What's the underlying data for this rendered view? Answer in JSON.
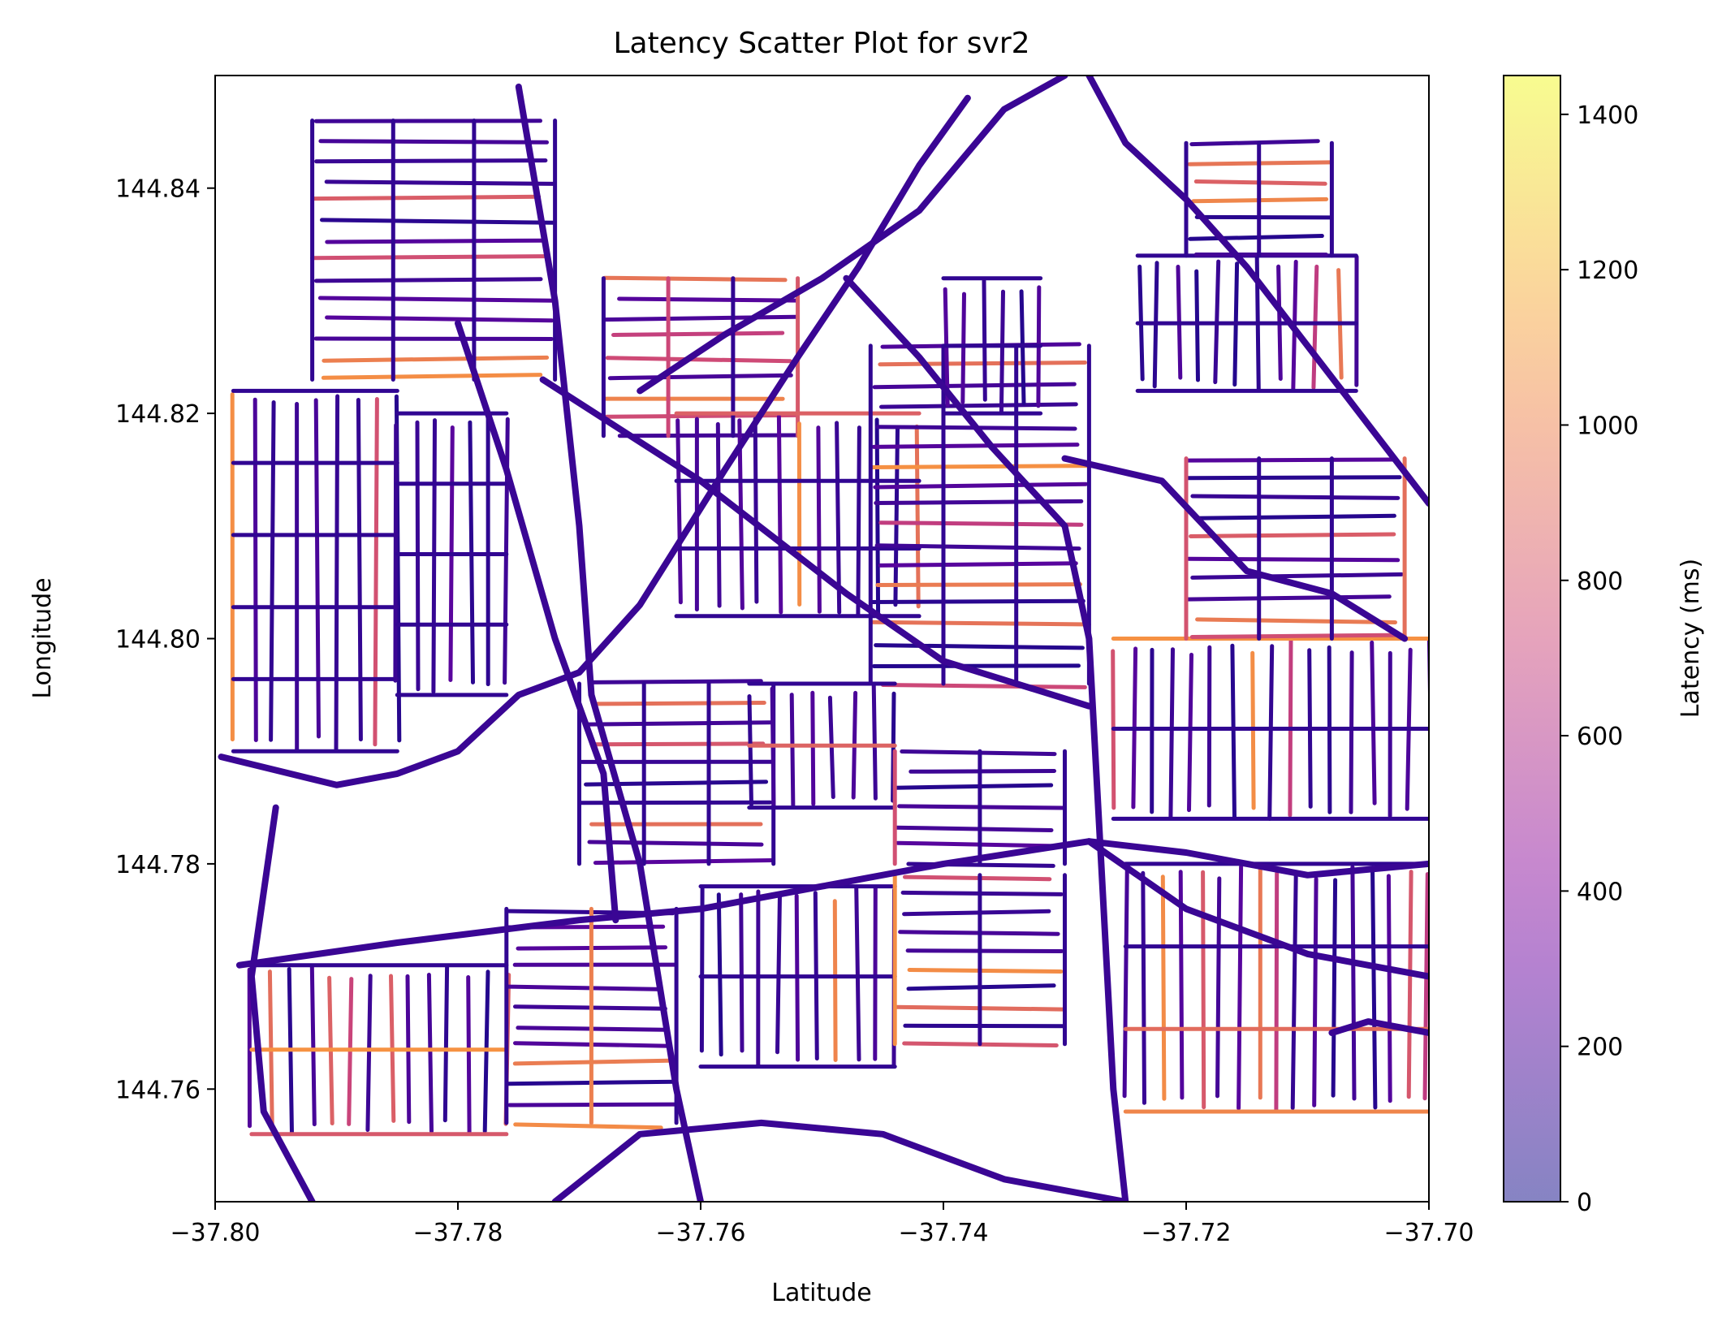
{
  "chart_data": {
    "type": "scatter",
    "title": "Latency Scatter Plot for svr2",
    "xlabel": "Latitude",
    "ylabel": "Longitude",
    "xlim": [
      -37.8,
      -37.7
    ],
    "ylim": [
      144.75,
      144.85
    ],
    "xticks": [
      -37.8,
      -37.78,
      -37.76,
      -37.74,
      -37.72,
      -37.7
    ],
    "xtick_labels": [
      "−37.80",
      "−37.78",
      "−37.76",
      "−37.74",
      "−37.72",
      "−37.70"
    ],
    "yticks": [
      144.76,
      144.78,
      144.8,
      144.82,
      144.84
    ],
    "ytick_labels": [
      "144.76",
      "144.78",
      "144.80",
      "144.82",
      "144.84"
    ],
    "colorbar": {
      "label": "Latency (ms)",
      "colormap": "plasma",
      "alpha": 0.5,
      "range": [
        0,
        1450
      ],
      "ticks": [
        0,
        200,
        400,
        600,
        800,
        1000,
        1200,
        1400
      ],
      "tick_labels": [
        "0",
        "200",
        "400",
        "600",
        "800",
        "1000",
        "1200",
        "1400"
      ]
    },
    "grid": false,
    "description_of_marks": "dense scatter of latency samples along a road network; most points low latency (dark blue/purple), scattered higher latency segments (pink/orange)",
    "highways": [
      [
        [
          -37.7995,
          144.7895
        ],
        [
          -37.79,
          144.787
        ],
        [
          -37.785,
          144.788
        ],
        [
          -37.78,
          144.79
        ],
        [
          -37.775,
          144.795
        ],
        [
          -37.77,
          144.797
        ],
        [
          -37.765,
          144.803
        ],
        [
          -37.758,
          144.815
        ],
        [
          -37.752,
          144.825
        ],
        [
          -37.747,
          144.833
        ],
        [
          -37.742,
          144.842
        ],
        [
          -37.738,
          144.848
        ]
      ],
      [
        [
          -37.765,
          144.822
        ],
        [
          -37.758,
          144.827
        ],
        [
          -37.75,
          144.832
        ],
        [
          -37.742,
          144.838
        ],
        [
          -37.735,
          144.847
        ],
        [
          -37.73,
          144.85
        ]
      ],
      [
        [
          -37.728,
          144.85
        ],
        [
          -37.725,
          144.844
        ],
        [
          -37.72,
          144.839
        ],
        [
          -37.715,
          144.833
        ],
        [
          -37.71,
          144.826
        ],
        [
          -37.705,
          144.819
        ],
        [
          -37.7,
          144.812
        ]
      ],
      [
        [
          -37.798,
          144.771
        ],
        [
          -37.785,
          144.773
        ],
        [
          -37.77,
          144.775
        ],
        [
          -37.76,
          144.776
        ],
        [
          -37.75,
          144.778
        ],
        [
          -37.74,
          144.78
        ],
        [
          -37.728,
          144.782
        ],
        [
          -37.72,
          144.781
        ],
        [
          -37.71,
          144.779
        ],
        [
          -37.7,
          144.78
        ]
      ],
      [
        [
          -37.775,
          144.849
        ],
        [
          -37.772,
          144.83
        ],
        [
          -37.77,
          144.81
        ],
        [
          -37.769,
          144.795
        ],
        [
          -37.765,
          144.78
        ],
        [
          -37.762,
          144.76
        ],
        [
          -37.76,
          144.75
        ]
      ],
      [
        [
          -37.78,
          144.828
        ],
        [
          -37.776,
          144.815
        ],
        [
          -37.772,
          144.8
        ],
        [
          -37.768,
          144.788
        ],
        [
          -37.767,
          144.775
        ]
      ],
      [
        [
          -37.773,
          144.823
        ],
        [
          -37.76,
          144.814
        ],
        [
          -37.748,
          144.804
        ],
        [
          -37.74,
          144.798
        ],
        [
          -37.728,
          144.794
        ]
      ],
      [
        [
          -37.748,
          144.832
        ],
        [
          -37.742,
          144.825
        ],
        [
          -37.736,
          144.817
        ],
        [
          -37.73,
          144.81
        ],
        [
          -37.728,
          144.8
        ],
        [
          -37.727,
          144.78
        ],
        [
          -37.726,
          144.76
        ],
        [
          -37.725,
          144.75
        ]
      ],
      [
        [
          -37.772,
          144.75
        ],
        [
          -37.765,
          144.756
        ],
        [
          -37.755,
          144.757
        ],
        [
          -37.745,
          144.756
        ],
        [
          -37.735,
          144.752
        ],
        [
          -37.725,
          144.75
        ]
      ],
      [
        [
          -37.795,
          144.785
        ],
        [
          -37.797,
          144.77
        ],
        [
          -37.796,
          144.758
        ],
        [
          -37.792,
          144.75
        ]
      ],
      [
        [
          -37.73,
          144.816
        ],
        [
          -37.722,
          144.814
        ],
        [
          -37.715,
          144.806
        ],
        [
          -37.708,
          144.804
        ],
        [
          -37.702,
          144.8
        ]
      ],
      [
        [
          -37.728,
          144.782
        ],
        [
          -37.72,
          144.776
        ],
        [
          -37.71,
          144.772
        ],
        [
          -37.7,
          144.77
        ]
      ],
      [
        [
          -37.708,
          144.765
        ],
        [
          -37.705,
          144.766
        ],
        [
          -37.7,
          144.765
        ]
      ]
    ],
    "neighborhoods": [
      {
        "x": [
          -37.7985,
          -37.785
        ],
        "y": [
          144.79,
          144.822
        ],
        "highlight": 0.1
      },
      {
        "x": [
          -37.792,
          -37.772
        ],
        "y": [
          144.823,
          144.846
        ],
        "highlight": 0.2
      },
      {
        "x": [
          -37.785,
          -37.776
        ],
        "y": [
          144.795,
          144.82
        ],
        "highlight": 0.1
      },
      {
        "x": [
          -37.768,
          -37.752
        ],
        "y": [
          144.818,
          144.832
        ],
        "highlight": 0.3
      },
      {
        "x": [
          -37.762,
          -37.742
        ],
        "y": [
          144.802,
          144.82
        ],
        "highlight": 0.4
      },
      {
        "x": [
          -37.746,
          -37.728
        ],
        "y": [
          144.796,
          144.826
        ],
        "highlight": 0.25
      },
      {
        "x": [
          -37.74,
          -37.732
        ],
        "y": [
          144.82,
          144.832
        ],
        "highlight": 0.1
      },
      {
        "x": [
          -37.77,
          -37.754
        ],
        "y": [
          144.78,
          144.796
        ],
        "highlight": 0.3
      },
      {
        "x": [
          -37.756,
          -37.744
        ],
        "y": [
          144.785,
          144.796
        ],
        "highlight": 0.15
      },
      {
        "x": [
          -37.744,
          -37.73
        ],
        "y": [
          144.78,
          144.79
        ],
        "highlight": 0.2
      },
      {
        "x": [
          -37.726,
          -37.7
        ],
        "y": [
          144.784,
          144.8
        ],
        "highlight": 0.15
      },
      {
        "x": [
          -37.72,
          -37.702
        ],
        "y": [
          144.8,
          144.816
        ],
        "highlight": 0.2
      },
      {
        "x": [
          -37.724,
          -37.706
        ],
        "y": [
          144.822,
          144.834
        ],
        "highlight": 0.3
      },
      {
        "x": [
          -37.72,
          -37.708
        ],
        "y": [
          144.834,
          144.844
        ],
        "highlight": 0.1
      },
      {
        "x": [
          -37.797,
          -37.776
        ],
        "y": [
          144.756,
          144.771
        ],
        "highlight": 0.35
      },
      {
        "x": [
          -37.776,
          -37.762
        ],
        "y": [
          144.757,
          144.776
        ],
        "highlight": 0.3
      },
      {
        "x": [
          -37.76,
          -37.744
        ],
        "y": [
          144.762,
          144.778
        ],
        "highlight": 0.2
      },
      {
        "x": [
          -37.744,
          -37.73
        ],
        "y": [
          144.764,
          144.779
        ],
        "highlight": 0.4
      },
      {
        "x": [
          -37.725,
          -37.7
        ],
        "y": [
          144.758,
          144.78
        ],
        "highlight": 0.35
      }
    ]
  }
}
